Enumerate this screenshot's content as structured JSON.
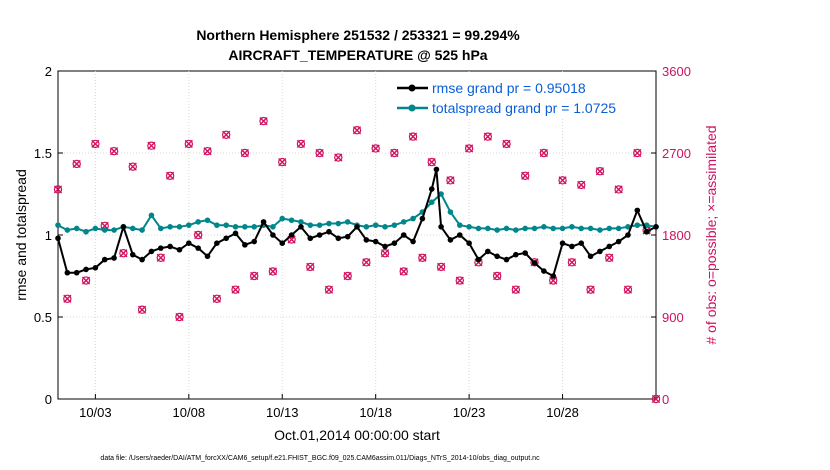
{
  "chart_data": {
    "type": "line",
    "title_line1": "Northern Hemisphere 251532 / 253321 = 99.294%",
    "title_line2": "AIRCRAFT_TEMPERATURE @ 525 hPa",
    "xlabel": "Oct.01,2014 00:00:00 start",
    "ylabel_left": "rmse and totalspread",
    "ylabel_right": "# of obs: o=possible; ×=assimilated",
    "x_ticks": [
      "10/03",
      "10/08",
      "10/13",
      "10/18",
      "10/23",
      "10/28"
    ],
    "x_tick_days": [
      3,
      8,
      13,
      18,
      23,
      28
    ],
    "xlim_days": [
      1,
      33
    ],
    "ylim_left": [
      0,
      2
    ],
    "y_ticks_left": [
      "0",
      "0.5",
      "1",
      "1.5",
      "2"
    ],
    "ylim_right": [
      0,
      3600
    ],
    "y_ticks_right": [
      "0",
      "900",
      "1800",
      "2700",
      "3600"
    ],
    "grid": true,
    "legend_position": "top-right",
    "colors": {
      "rmse": "#000000",
      "totalspread": "#00868b",
      "obs": "#d0115f"
    },
    "series": [
      {
        "name": "rmse grand pr = 0.95018",
        "axis": "left",
        "x": [
          1.0,
          1.5,
          2.0,
          2.5,
          3.0,
          3.5,
          4.0,
          4.5,
          5.0,
          5.5,
          6.0,
          6.5,
          7.0,
          7.5,
          8.0,
          8.5,
          9.0,
          9.5,
          10.0,
          10.5,
          11.0,
          11.5,
          12.0,
          12.5,
          13.0,
          13.5,
          14.0,
          14.5,
          15.0,
          15.5,
          16.0,
          16.5,
          17.0,
          17.5,
          18.0,
          18.5,
          19.0,
          19.5,
          20.0,
          20.5,
          21.0,
          21.25,
          21.5,
          22.0,
          22.5,
          23.0,
          23.5,
          24.0,
          24.5,
          25.0,
          25.5,
          26.0,
          26.5,
          27.0,
          27.5,
          28.0,
          28.5,
          29.0,
          29.5,
          30.0,
          30.5,
          31.0,
          31.5,
          32.0,
          32.5,
          33.0
        ],
        "values": [
          0.98,
          0.77,
          0.77,
          0.79,
          0.8,
          0.85,
          0.86,
          1.05,
          0.88,
          0.85,
          0.9,
          0.92,
          0.93,
          0.91,
          0.95,
          0.92,
          0.87,
          0.95,
          0.98,
          1.01,
          0.94,
          0.96,
          1.08,
          1.0,
          0.95,
          1.0,
          1.05,
          0.98,
          1.0,
          1.02,
          0.98,
          0.99,
          1.05,
          0.97,
          0.96,
          0.93,
          0.95,
          1.0,
          0.96,
          1.1,
          1.28,
          1.4,
          1.05,
          0.97,
          1.0,
          0.95,
          0.85,
          0.9,
          0.87,
          0.85,
          0.88,
          0.89,
          0.83,
          0.78,
          0.75,
          0.95,
          0.93,
          0.95,
          0.87,
          0.9,
          0.93,
          0.96,
          1.0,
          1.15,
          1.02,
          1.05
        ],
        "marker": "circle-filled"
      },
      {
        "name": "totalspread grand pr = 1.0725",
        "axis": "left",
        "x": [
          1.0,
          1.5,
          2.0,
          2.5,
          3.0,
          3.5,
          4.0,
          4.5,
          5.0,
          5.5,
          6.0,
          6.5,
          7.0,
          7.5,
          8.0,
          8.5,
          9.0,
          9.5,
          10.0,
          10.5,
          11.0,
          11.5,
          12.0,
          12.5,
          13.0,
          13.5,
          14.0,
          14.5,
          15.0,
          15.5,
          16.0,
          16.5,
          17.0,
          17.5,
          18.0,
          18.5,
          19.0,
          19.5,
          20.0,
          20.5,
          21.0,
          21.5,
          22.0,
          22.5,
          23.0,
          23.5,
          24.0,
          24.5,
          25.0,
          25.5,
          26.0,
          26.5,
          27.0,
          27.5,
          28.0,
          28.5,
          29.0,
          29.5,
          30.0,
          30.5,
          31.0,
          31.5,
          32.0,
          32.5,
          33.0
        ],
        "values": [
          1.06,
          1.03,
          1.04,
          1.02,
          1.04,
          1.03,
          1.03,
          1.05,
          1.04,
          1.03,
          1.12,
          1.04,
          1.05,
          1.05,
          1.06,
          1.08,
          1.09,
          1.06,
          1.06,
          1.05,
          1.05,
          1.05,
          1.06,
          1.05,
          1.1,
          1.09,
          1.08,
          1.06,
          1.06,
          1.07,
          1.07,
          1.08,
          1.06,
          1.05,
          1.06,
          1.05,
          1.06,
          1.08,
          1.1,
          1.14,
          1.2,
          1.25,
          1.14,
          1.06,
          1.05,
          1.04,
          1.04,
          1.03,
          1.04,
          1.03,
          1.04,
          1.04,
          1.05,
          1.04,
          1.04,
          1.05,
          1.04,
          1.04,
          1.03,
          1.04,
          1.04,
          1.05,
          1.06,
          1.06,
          1.05
        ],
        "marker": "circle-filled"
      }
    ],
    "obs": {
      "axis": "right",
      "x": [
        1.0,
        1.5,
        2.0,
        2.5,
        3.0,
        3.5,
        4.0,
        4.5,
        5.0,
        5.5,
        6.0,
        6.5,
        7.0,
        7.5,
        8.0,
        8.5,
        9.0,
        9.5,
        10.0,
        10.5,
        11.0,
        11.5,
        12.0,
        12.5,
        13.0,
        13.5,
        14.0,
        14.5,
        15.0,
        15.5,
        16.0,
        16.5,
        17.0,
        17.5,
        18.0,
        18.5,
        19.0,
        19.5,
        20.0,
        20.5,
        21.0,
        21.5,
        22.0,
        22.5,
        23.0,
        23.5,
        24.0,
        24.5,
        25.0,
        25.5,
        26.0,
        26.5,
        27.0,
        27.5,
        28.0,
        28.5,
        29.0,
        29.5,
        30.0,
        30.5,
        31.0,
        31.5,
        32.0,
        32.5,
        33.0
      ],
      "values": [
        2300,
        1100,
        2580,
        1300,
        2800,
        1900,
        2720,
        1600,
        2550,
        980,
        2780,
        1550,
        2450,
        900,
        2800,
        1800,
        2720,
        1100,
        2900,
        1200,
        2700,
        1350,
        3050,
        1400,
        2600,
        1750,
        2800,
        1450,
        2700,
        1200,
        2650,
        1350,
        2950,
        1500,
        2750,
        1600,
        2700,
        1400,
        2880,
        1550,
        2600,
        1450,
        2400,
        1300,
        2750,
        1500,
        2880,
        1350,
        2800,
        1200,
        2450,
        1500,
        2700,
        1300,
        2400,
        1500,
        2350,
        1200,
        2500,
        1550,
        2300,
        1200,
        2700,
        1850,
        0
      ],
      "marker": "o-and-x"
    },
    "footer": "data file: /Users/raeder/DAI/ATM_forcXX/CAM6_setup/f.e21.FHIST_BGC.f09_025.CAM6assim.011/Diags_NTrS_2014-10/obs_diag_output.nc"
  }
}
